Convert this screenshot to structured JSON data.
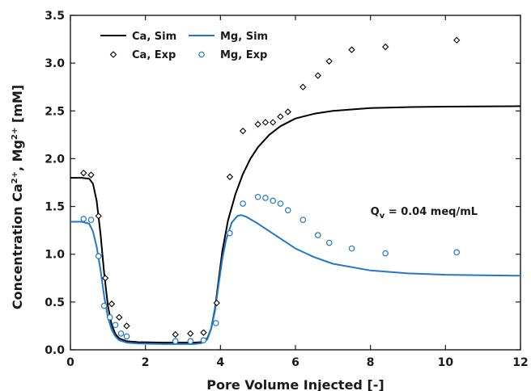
{
  "chart_data": {
    "type": "line",
    "xlabel": "Pore Volume Injected [-]",
    "ylabel_parts": {
      "main": "Concentration  Ca",
      "sup1": "2+",
      "mid": ",  Mg",
      "sup2": "2+",
      "end": " [mM]"
    },
    "xlim": [
      0,
      12
    ],
    "ylim": [
      0,
      3.5
    ],
    "x_ticks": [
      0,
      2,
      4,
      6,
      8,
      10,
      12
    ],
    "x_tick_labels": [
      "0",
      "2",
      "4",
      "6",
      "8",
      "10",
      "12"
    ],
    "y_ticks": [
      0,
      0.5,
      1.0,
      1.5,
      2.0,
      2.5,
      3.0,
      3.5
    ],
    "y_tick_labels": [
      "0.0",
      "0.5",
      "1.0",
      "1.5",
      "2.0",
      "2.5",
      "3.0",
      "3.5"
    ],
    "grid": false,
    "legend_position": "top-left",
    "annotation": {
      "main": "Q",
      "sub": "v",
      "rest": " = 0.04 meq/mL",
      "x": 8.0,
      "y": 1.41
    },
    "series": [
      {
        "name": "Ca, Sim",
        "kind": "line",
        "color": "#000000",
        "points": [
          [
            0,
            1.8
          ],
          [
            0.3,
            1.8
          ],
          [
            0.5,
            1.79
          ],
          [
            0.6,
            1.74
          ],
          [
            0.7,
            1.56
          ],
          [
            0.8,
            1.22
          ],
          [
            0.9,
            0.8
          ],
          [
            1.0,
            0.46
          ],
          [
            1.1,
            0.26
          ],
          [
            1.2,
            0.165
          ],
          [
            1.3,
            0.12
          ],
          [
            1.5,
            0.09
          ],
          [
            1.8,
            0.08
          ],
          [
            2.5,
            0.075
          ],
          [
            3.3,
            0.075
          ],
          [
            3.5,
            0.08
          ],
          [
            3.65,
            0.12
          ],
          [
            3.75,
            0.22
          ],
          [
            3.85,
            0.42
          ],
          [
            3.95,
            0.72
          ],
          [
            4.05,
            1.03
          ],
          [
            4.2,
            1.35
          ],
          [
            4.4,
            1.63
          ],
          [
            4.6,
            1.84
          ],
          [
            4.8,
            2.0
          ],
          [
            5.0,
            2.12
          ],
          [
            5.3,
            2.25
          ],
          [
            5.6,
            2.34
          ],
          [
            6.0,
            2.42
          ],
          [
            6.5,
            2.47
          ],
          [
            7.0,
            2.5
          ],
          [
            8.0,
            2.53
          ],
          [
            9.0,
            2.54
          ],
          [
            10.0,
            2.545
          ],
          [
            12.0,
            2.55
          ]
        ]
      },
      {
        "name": "Mg, Sim",
        "kind": "line",
        "color": "#1f78c8",
        "points": [
          [
            0,
            1.34
          ],
          [
            0.3,
            1.34
          ],
          [
            0.5,
            1.32
          ],
          [
            0.6,
            1.24
          ],
          [
            0.7,
            1.08
          ],
          [
            0.8,
            0.84
          ],
          [
            0.9,
            0.56
          ],
          [
            1.0,
            0.34
          ],
          [
            1.1,
            0.21
          ],
          [
            1.2,
            0.14
          ],
          [
            1.3,
            0.1
          ],
          [
            1.5,
            0.075
          ],
          [
            1.8,
            0.065
          ],
          [
            2.5,
            0.06
          ],
          [
            3.3,
            0.06
          ],
          [
            3.5,
            0.07
          ],
          [
            3.65,
            0.11
          ],
          [
            3.75,
            0.22
          ],
          [
            3.85,
            0.4
          ],
          [
            3.95,
            0.68
          ],
          [
            4.05,
            0.95
          ],
          [
            4.15,
            1.15
          ],
          [
            4.3,
            1.33
          ],
          [
            4.45,
            1.4
          ],
          [
            4.55,
            1.41
          ],
          [
            4.7,
            1.39
          ],
          [
            5.0,
            1.32
          ],
          [
            5.5,
            1.19
          ],
          [
            6.0,
            1.06
          ],
          [
            6.5,
            0.97
          ],
          [
            7.0,
            0.9
          ],
          [
            8.0,
            0.83
          ],
          [
            9.0,
            0.8
          ],
          [
            10.0,
            0.785
          ],
          [
            11.0,
            0.78
          ],
          [
            12.0,
            0.775
          ]
        ]
      },
      {
        "name": "Ca, Exp",
        "kind": "marker",
        "marker": "diamond",
        "color": "#000000",
        "points": [
          [
            0.35,
            1.85
          ],
          [
            0.55,
            1.83
          ],
          [
            0.75,
            1.4
          ],
          [
            0.93,
            0.75
          ],
          [
            1.1,
            0.48
          ],
          [
            1.3,
            0.34
          ],
          [
            1.5,
            0.25
          ],
          [
            2.8,
            0.16
          ],
          [
            3.2,
            0.17
          ],
          [
            3.55,
            0.18
          ],
          [
            3.9,
            0.49
          ],
          [
            4.25,
            1.81
          ],
          [
            4.6,
            2.29
          ],
          [
            5.0,
            2.36
          ],
          [
            5.2,
            2.38
          ],
          [
            5.4,
            2.38
          ],
          [
            5.6,
            2.44
          ],
          [
            5.8,
            2.49
          ],
          [
            6.2,
            2.75
          ],
          [
            6.6,
            2.87
          ],
          [
            6.9,
            3.02
          ],
          [
            7.5,
            3.14
          ],
          [
            8.4,
            3.17
          ],
          [
            10.3,
            3.24
          ]
        ]
      },
      {
        "name": "Mg, Exp",
        "kind": "marker",
        "marker": "circle",
        "color": "#1f78c8",
        "points": [
          [
            0.35,
            1.37
          ],
          [
            0.55,
            1.36
          ],
          [
            0.75,
            0.98
          ],
          [
            0.9,
            0.46
          ],
          [
            1.05,
            0.34
          ],
          [
            1.2,
            0.26
          ],
          [
            1.35,
            0.17
          ],
          [
            1.5,
            0.14
          ],
          [
            2.8,
            0.09
          ],
          [
            3.2,
            0.09
          ],
          [
            3.55,
            0.1
          ],
          [
            3.88,
            0.28
          ],
          [
            4.25,
            1.22
          ],
          [
            4.6,
            1.53
          ],
          [
            5.0,
            1.6
          ],
          [
            5.2,
            1.59
          ],
          [
            5.4,
            1.56
          ],
          [
            5.6,
            1.53
          ],
          [
            5.8,
            1.46
          ],
          [
            6.2,
            1.36
          ],
          [
            6.6,
            1.2
          ],
          [
            6.9,
            1.12
          ],
          [
            7.5,
            1.06
          ],
          [
            8.4,
            1.01
          ],
          [
            10.3,
            1.02
          ]
        ]
      }
    ]
  }
}
